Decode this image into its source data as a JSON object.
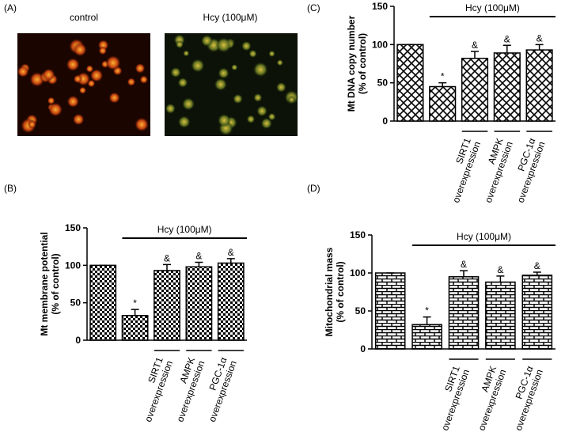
{
  "panel_a": {
    "label": "(A)",
    "images": [
      "control",
      "Hcy (100μM)"
    ]
  },
  "chart_data": [
    {
      "type": "bar",
      "panel": "(B)",
      "ylabel": [
        "Mt membrane potential",
        "(% of control)"
      ],
      "bracket_label": "Hcy (100μM)",
      "categories": [
        null,
        null,
        [
          "SIRT1",
          "overexpression"
        ],
        [
          "AMPK",
          "overexpression"
        ],
        [
          "PGC-1α",
          "overexpression"
        ]
      ],
      "values": [
        100,
        33,
        93,
        98,
        103
      ],
      "errors": [
        0,
        8,
        8,
        6,
        6
      ],
      "markers": [
        null,
        "*",
        "&",
        "&",
        "&"
      ],
      "ylim": [
        0,
        150
      ],
      "yticks": [
        0,
        50,
        100,
        150
      ],
      "pattern": "checker",
      "color": "#000000"
    },
    {
      "type": "bar",
      "panel": "(C)",
      "ylabel": [
        "Mt DNA copy number",
        "(% of control)"
      ],
      "bracket_label": "Hcy (100μM)",
      "categories": [
        null,
        null,
        [
          "SIRT1",
          "overexpression"
        ],
        [
          "AMPK",
          "overexpression"
        ],
        [
          "PGC-1α",
          "overexpression"
        ]
      ],
      "values": [
        100,
        45,
        82,
        89,
        93
      ],
      "errors": [
        0,
        5,
        9,
        10,
        7
      ],
      "markers": [
        null,
        "*",
        "&",
        "&",
        "&"
      ],
      "ylim": [
        0,
        150
      ],
      "yticks": [
        0,
        50,
        100,
        150
      ],
      "pattern": "crosshatch",
      "color": "#000000"
    },
    {
      "type": "bar",
      "panel": "(D)",
      "ylabel": [
        "Mitochondrial mass",
        "(% of control)"
      ],
      "bracket_label": "Hcy (100μM)",
      "categories": [
        null,
        null,
        [
          "SIRT1",
          "overexpression"
        ],
        [
          "AMPK",
          "overexpression"
        ],
        [
          "PGC-1α",
          "overexpression"
        ]
      ],
      "values": [
        100,
        32,
        95,
        88,
        97
      ],
      "errors": [
        0,
        10,
        8,
        8,
        4
      ],
      "markers": [
        null,
        "*",
        "&",
        "&",
        "&"
      ],
      "ylim": [
        0,
        150
      ],
      "yticks": [
        0,
        50,
        100,
        150
      ],
      "pattern": "brick",
      "color": "#000000"
    }
  ]
}
